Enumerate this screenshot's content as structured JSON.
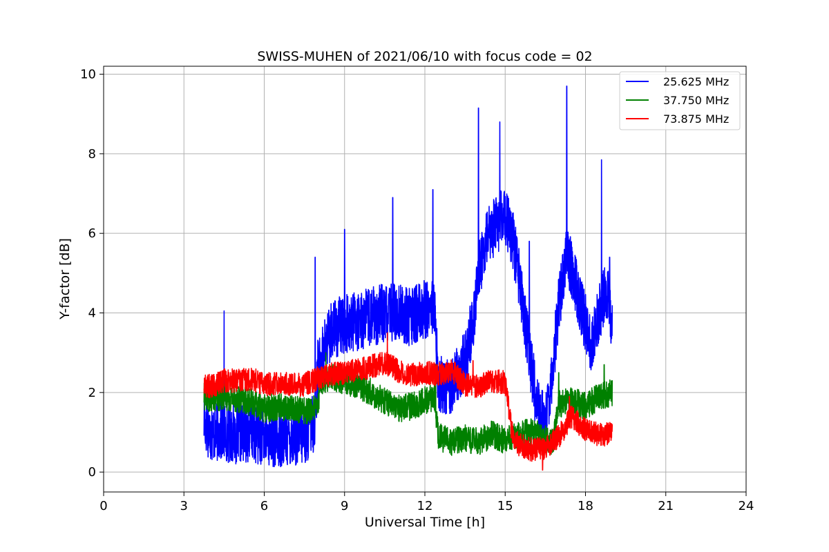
{
  "chart_data": {
    "type": "line",
    "title": "SWISS-MUHEN of 2021/06/10 with focus code = 02",
    "xlabel": "Universal Time [h]",
    "ylabel": "Y-factor [dB]",
    "xlim": [
      0,
      24
    ],
    "ylim": [
      -0.5,
      10.2
    ],
    "xticks": [
      "0",
      "3",
      "6",
      "9",
      "12",
      "15",
      "18",
      "21",
      "24"
    ],
    "yticks": [
      "0",
      "2",
      "4",
      "6",
      "8",
      "10"
    ],
    "grid": true,
    "legend_position": "top-right",
    "series": [
      {
        "name": "25.625 MHz",
        "color": "#0000ff",
        "noise": 0.75,
        "spikes": [
          [
            4.5,
            4.05
          ],
          [
            7.9,
            5.4
          ],
          [
            9.0,
            6.1
          ],
          [
            10.8,
            6.9
          ],
          [
            12.3,
            7.1
          ],
          [
            14.0,
            9.15
          ],
          [
            14.8,
            8.8
          ],
          [
            15.9,
            5.8
          ],
          [
            17.3,
            9.7
          ],
          [
            18.6,
            7.85
          ],
          [
            18.9,
            5.4
          ]
        ],
        "x": [
          3.75,
          4.0,
          4.5,
          5.0,
          5.5,
          6.0,
          6.5,
          7.0,
          7.5,
          7.9,
          8.0,
          8.5,
          9.0,
          9.5,
          10.0,
          10.5,
          11.0,
          11.5,
          12.0,
          12.35,
          12.5,
          13.0,
          13.5,
          13.8,
          14.0,
          14.3,
          14.6,
          15.0,
          15.3,
          15.6,
          15.9,
          16.2,
          16.5,
          16.8,
          17.0,
          17.3,
          17.6,
          17.9,
          18.2,
          18.5,
          18.8,
          19.0
        ],
        "y": [
          1.3,
          1.0,
          1.0,
          0.95,
          1.0,
          0.9,
          0.85,
          0.9,
          0.9,
          1.3,
          2.6,
          3.6,
          3.7,
          3.8,
          3.9,
          4.0,
          4.0,
          3.9,
          4.1,
          4.2,
          2.2,
          2.2,
          2.8,
          3.8,
          5.0,
          5.8,
          6.2,
          6.4,
          5.8,
          4.5,
          3.0,
          1.6,
          1.2,
          2.8,
          4.2,
          5.5,
          4.8,
          4.0,
          3.2,
          4.0,
          4.6,
          3.5
        ]
      },
      {
        "name": "37.750 MHz",
        "color": "#008000",
        "noise": 0.35,
        "spikes": [
          [
            8.3,
            3.0
          ],
          [
            12.4,
            2.7
          ],
          [
            17.0,
            2.5
          ],
          [
            18.7,
            2.7
          ]
        ],
        "x": [
          3.75,
          4.0,
          4.5,
          5.0,
          5.5,
          6.0,
          6.5,
          7.0,
          7.5,
          8.0,
          8.1,
          8.5,
          9.0,
          9.5,
          10.0,
          10.5,
          11.0,
          11.5,
          12.0,
          12.35,
          12.5,
          13.0,
          13.5,
          14.0,
          14.5,
          15.0,
          15.5,
          16.0,
          16.5,
          16.8,
          17.0,
          17.5,
          18.0,
          18.5,
          19.0
        ],
        "y": [
          1.9,
          1.85,
          1.9,
          1.85,
          1.75,
          1.6,
          1.65,
          1.6,
          1.55,
          1.6,
          2.3,
          2.4,
          2.3,
          2.2,
          2.0,
          1.8,
          1.6,
          1.65,
          1.8,
          1.9,
          0.9,
          0.75,
          0.85,
          0.75,
          0.95,
          0.8,
          0.95,
          1.0,
          0.85,
          0.75,
          1.7,
          1.8,
          1.65,
          1.9,
          2.0
        ]
      },
      {
        "name": "73.875 MHz",
        "color": "#ff0000",
        "noise": 0.3,
        "spikes": [
          [
            10.6,
            3.5
          ],
          [
            13.8,
            2.8
          ],
          [
            16.4,
            0.05
          ],
          [
            17.4,
            1.9
          ]
        ],
        "x": [
          3.75,
          4.0,
          4.5,
          5.0,
          5.5,
          6.0,
          6.5,
          7.0,
          7.5,
          8.0,
          8.5,
          9.0,
          9.5,
          10.0,
          10.5,
          11.0,
          11.5,
          12.0,
          12.5,
          13.0,
          13.5,
          14.0,
          14.5,
          15.0,
          15.25,
          15.5,
          16.0,
          16.5,
          17.0,
          17.5,
          18.0,
          18.5,
          19.0
        ],
        "y": [
          2.2,
          2.15,
          2.3,
          2.3,
          2.35,
          2.2,
          2.25,
          2.2,
          2.2,
          2.35,
          2.45,
          2.5,
          2.55,
          2.65,
          2.75,
          2.55,
          2.45,
          2.5,
          2.45,
          2.55,
          2.2,
          2.15,
          2.3,
          2.25,
          1.0,
          0.7,
          0.55,
          0.6,
          0.9,
          1.4,
          1.05,
          0.95,
          0.95
        ]
      }
    ]
  }
}
